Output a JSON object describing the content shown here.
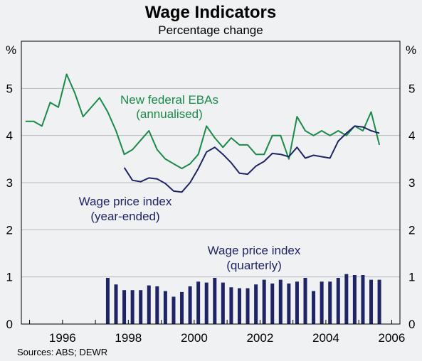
{
  "chart_data": {
    "type": "line",
    "title": "Wage Indicators",
    "subtitle": "Percentage change",
    "y_unit_left": "%",
    "y_unit_right": "%",
    "ylim": [
      0,
      6
    ],
    "yticks": [
      0,
      1,
      2,
      3,
      4,
      5
    ],
    "xlim": [
      1994.75,
      2006.25
    ],
    "xticks": [
      1996,
      1998,
      2000,
      2002,
      2004,
      2006
    ],
    "source": "Sources: ABS; DEWR",
    "annotations": {
      "ebas_line1": "New federal EBAs",
      "ebas_line2": "(annualised)",
      "wpi_ye_line1": "Wage price index",
      "wpi_ye_line2": "(year-ended)",
      "wpi_q_line1": "Wage price index",
      "wpi_q_line2": "(quarterly)"
    },
    "colors": {
      "ebas": "#1a8a4a",
      "wpi": "#1f2466",
      "background": "#f0f1f2",
      "grid": "#b8babd"
    },
    "series": [
      {
        "key": "ebas",
        "style": "line",
        "x": [
          1994.875,
          1995.125,
          1995.375,
          1995.625,
          1995.875,
          1996.125,
          1996.375,
          1996.625,
          1996.875,
          1997.125,
          1997.375,
          1997.625,
          1997.875,
          1998.125,
          1998.375,
          1998.625,
          1998.875,
          1999.125,
          1999.375,
          1999.625,
          1999.875,
          2000.125,
          2000.375,
          2000.625,
          2000.875,
          2001.125,
          2001.375,
          2001.625,
          2001.875,
          2002.125,
          2002.375,
          2002.625,
          2002.875,
          2003.125,
          2003.375,
          2003.625,
          2003.875,
          2004.125,
          2004.375,
          2004.625,
          2004.875,
          2005.125,
          2005.375,
          2005.625
        ],
        "values": [
          4.3,
          4.3,
          4.2,
          4.7,
          4.6,
          5.3,
          4.9,
          4.4,
          4.6,
          4.8,
          4.5,
          4.1,
          3.6,
          3.7,
          3.9,
          4.1,
          3.7,
          3.5,
          3.4,
          3.3,
          3.4,
          3.6,
          4.2,
          3.95,
          3.75,
          3.95,
          3.8,
          3.8,
          3.6,
          3.6,
          4.0,
          4.0,
          3.5,
          4.4,
          4.1,
          4.0,
          4.1,
          4.0,
          4.1,
          4.0,
          4.2,
          4.1,
          4.5,
          3.8
        ]
      },
      {
        "key": "wpi_ye",
        "style": "line",
        "x": [
          1997.875,
          1998.125,
          1998.375,
          1998.625,
          1998.875,
          1999.125,
          1999.375,
          1999.625,
          1999.875,
          2000.125,
          2000.375,
          2000.625,
          2000.875,
          2001.125,
          2001.375,
          2001.625,
          2001.875,
          2002.125,
          2002.375,
          2002.625,
          2002.875,
          2003.125,
          2003.375,
          2003.625,
          2003.875,
          2004.125,
          2004.375,
          2004.625,
          2004.875,
          2005.125,
          2005.375,
          2005.625
        ],
        "values": [
          3.32,
          3.05,
          3.02,
          3.1,
          3.08,
          2.98,
          2.82,
          2.8,
          3.0,
          3.3,
          3.65,
          3.75,
          3.6,
          3.42,
          3.2,
          3.18,
          3.35,
          3.45,
          3.62,
          3.6,
          3.55,
          3.75,
          3.52,
          3.58,
          3.55,
          3.52,
          3.88,
          4.05,
          4.2,
          4.18,
          4.1,
          4.05
        ]
      },
      {
        "key": "wpi_q",
        "style": "bar",
        "x": [
          1997.375,
          1997.625,
          1997.875,
          1998.125,
          1998.375,
          1998.625,
          1998.875,
          1999.125,
          1999.375,
          1999.625,
          1999.875,
          2000.125,
          2000.375,
          2000.625,
          2000.875,
          2001.125,
          2001.375,
          2001.625,
          2001.875,
          2002.125,
          2002.375,
          2002.625,
          2002.875,
          2003.125,
          2003.375,
          2003.625,
          2003.875,
          2004.125,
          2004.375,
          2004.625,
          2004.875,
          2005.125,
          2005.375,
          2005.625
        ],
        "values": [
          0.98,
          0.84,
          0.72,
          0.72,
          0.72,
          0.82,
          0.8,
          0.7,
          0.58,
          0.68,
          0.8,
          0.9,
          0.88,
          0.98,
          0.88,
          0.78,
          0.76,
          0.76,
          0.84,
          0.94,
          0.86,
          0.94,
          0.86,
          0.9,
          0.98,
          0.7,
          0.9,
          0.9,
          0.98,
          1.06,
          1.04,
          1.04,
          0.94,
          0.94
        ]
      }
    ]
  }
}
